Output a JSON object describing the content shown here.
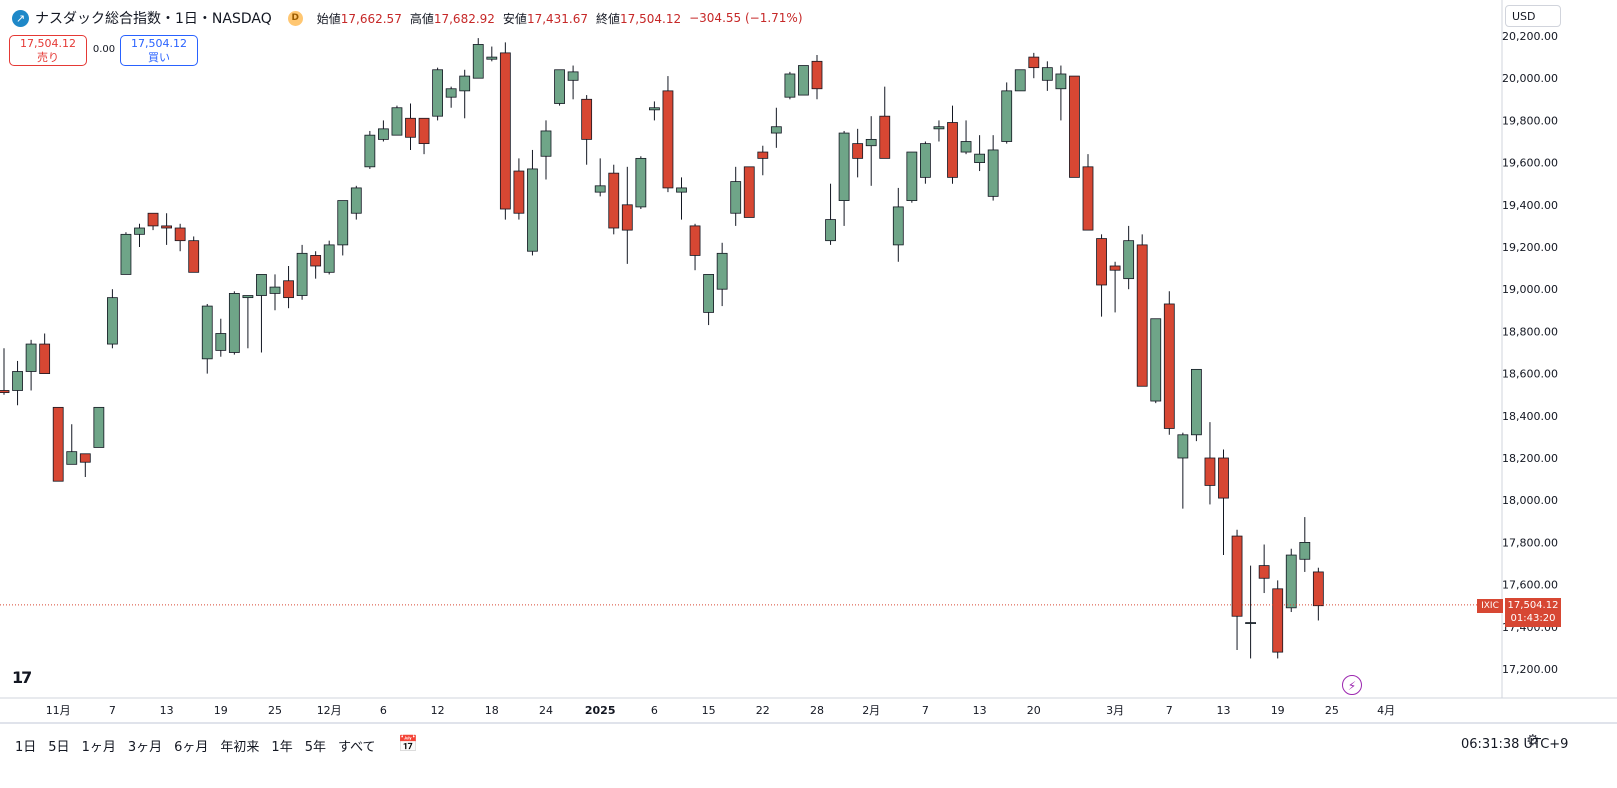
{
  "header": {
    "symbol": "ナスダック総合指数・1日・NASDAQ",
    "symbol_logo_icon": "trend-icon",
    "data_badge": "D",
    "open_label": "始値",
    "open": "17,662.57",
    "high_label": "高値",
    "high": "17,682.92",
    "low_label": "安値",
    "low": "17,431.67",
    "close_label": "終値",
    "close": "17,504.12",
    "change": "−304.55 (−1.71%)"
  },
  "trade": {
    "sell_price": "17,504.12",
    "sell_label": "売り",
    "spread": "0.00",
    "buy_price": "17,504.12",
    "buy_label": "買い"
  },
  "currency": "USD",
  "price_tag": {
    "symbol": "IXIC",
    "price": "17,504.12",
    "countdown": "01:43:20"
  },
  "ranges": [
    "1日",
    "5日",
    "1ヶ月",
    "3ヶ月",
    "6ヶ月",
    "年初来",
    "1年",
    "5年",
    "すべて"
  ],
  "clock": "06:31:38 UTC+9",
  "logo_text": "17",
  "colors": {
    "up": "#6fa588",
    "down": "#d74733",
    "border": "#131722",
    "last": "#d74733"
  },
  "chart_data": {
    "type": "candlestick",
    "y_ticks": [
      "17,200.00",
      "17,400.00",
      "17,600.00",
      "17,800.00",
      "18,000.00",
      "18,200.00",
      "18,400.00",
      "18,600.00",
      "18,800.00",
      "19,000.00",
      "19,200.00",
      "19,400.00",
      "19,600.00",
      "19,800.00",
      "20,000.00",
      "20,200.00"
    ],
    "y_tick_values": [
      17200,
      17400,
      17600,
      17800,
      18000,
      18200,
      18400,
      18600,
      18800,
      19000,
      19200,
      19400,
      19600,
      19800,
      20000,
      20200
    ],
    "ylim": [
      17000,
      20250
    ],
    "x_labels": [
      {
        "label": "11月",
        "i": 4
      },
      {
        "label": "7",
        "i": 8
      },
      {
        "label": "13",
        "i": 12
      },
      {
        "label": "19",
        "i": 16
      },
      {
        "label": "25",
        "i": 20
      },
      {
        "label": "12月",
        "i": 24
      },
      {
        "label": "6",
        "i": 28
      },
      {
        "label": "12",
        "i": 32
      },
      {
        "label": "18",
        "i": 36
      },
      {
        "label": "24",
        "i": 40
      },
      {
        "label": "2025",
        "i": 44
      },
      {
        "label": "6",
        "i": 48
      },
      {
        "label": "15",
        "i": 52
      },
      {
        "label": "22",
        "i": 56
      },
      {
        "label": "28",
        "i": 60
      },
      {
        "label": "2月",
        "i": 64
      },
      {
        "label": "7",
        "i": 68
      },
      {
        "label": "13",
        "i": 72
      },
      {
        "label": "20",
        "i": 76
      },
      {
        "label": "3月",
        "i": 82
      },
      {
        "label": "7",
        "i": 86
      },
      {
        "label": "13",
        "i": 90
      },
      {
        "label": "19",
        "i": 94
      },
      {
        "label": "25",
        "i": 98
      },
      {
        "label": "4月",
        "i": 102
      }
    ],
    "last_price": 17504.12,
    "candles": [
      [
        18520,
        18720,
        18500,
        18510
      ],
      [
        18520,
        18660,
        18450,
        18610
      ],
      [
        18610,
        18760,
        18520,
        18740
      ],
      [
        18740,
        18790,
        18600,
        18600
      ],
      [
        18440,
        18440,
        18090,
        18090
      ],
      [
        18170,
        18360,
        18170,
        18230
      ],
      [
        18220,
        18220,
        18110,
        18180
      ],
      [
        18250,
        18440,
        18250,
        18440
      ],
      [
        18740,
        19000,
        18720,
        18960
      ],
      [
        19070,
        19270,
        19070,
        19260
      ],
      [
        19260,
        19310,
        19200,
        19290
      ],
      [
        19360,
        19360,
        19280,
        19300
      ],
      [
        19300,
        19360,
        19210,
        19290
      ],
      [
        19290,
        19310,
        19180,
        19230
      ],
      [
        19230,
        19250,
        19080,
        19080
      ],
      [
        18670,
        18930,
        18600,
        18920
      ],
      [
        18710,
        18860,
        18680,
        18790
      ],
      [
        18700,
        18990,
        18690,
        18980
      ],
      [
        18960,
        18970,
        18720,
        18970
      ],
      [
        18970,
        19050,
        18700,
        19070
      ],
      [
        18980,
        19070,
        18900,
        19010
      ],
      [
        19040,
        19110,
        18910,
        18960
      ],
      [
        18970,
        19210,
        18950,
        19170
      ],
      [
        19160,
        19180,
        19050,
        19110
      ],
      [
        19080,
        19230,
        19070,
        19210
      ],
      [
        19210,
        19420,
        19160,
        19420
      ],
      [
        19360,
        19490,
        19330,
        19480
      ],
      [
        19580,
        19750,
        19570,
        19730
      ],
      [
        19710,
        19800,
        19700,
        19760
      ],
      [
        19730,
        19870,
        19730,
        19860
      ],
      [
        19810,
        19880,
        19660,
        19720
      ],
      [
        19810,
        19800,
        19640,
        19690
      ],
      [
        19820,
        20050,
        19800,
        20040
      ],
      [
        19910,
        19960,
        19860,
        19950
      ],
      [
        19940,
        20040,
        19810,
        20010
      ],
      [
        20000,
        20190,
        20000,
        20160
      ],
      [
        20090,
        20150,
        20080,
        20100
      ],
      [
        20120,
        20170,
        19330,
        19380
      ],
      [
        19560,
        19620,
        19330,
        19360
      ],
      [
        19180,
        19660,
        19160,
        19570
      ],
      [
        19630,
        19800,
        19520,
        19750
      ],
      [
        19880,
        20020,
        19870,
        20040
      ],
      [
        19990,
        20060,
        19900,
        20030
      ],
      [
        19900,
        19920,
        19590,
        19710
      ],
      [
        19460,
        19620,
        19440,
        19490
      ],
      [
        19550,
        19590,
        19260,
        19290
      ],
      [
        19400,
        19580,
        19120,
        19280
      ],
      [
        19390,
        19630,
        19380,
        19620
      ],
      [
        19850,
        19890,
        19800,
        19860
      ],
      [
        19940,
        20010,
        19460,
        19480
      ],
      [
        19460,
        19530,
        19330,
        19480
      ],
      [
        19300,
        19310,
        19090,
        19160
      ],
      [
        18890,
        19050,
        18830,
        19070
      ],
      [
        19000,
        19220,
        18920,
        19170
      ],
      [
        19360,
        19580,
        19300,
        19510
      ],
      [
        19580,
        19580,
        19340,
        19340
      ],
      [
        19650,
        19680,
        19540,
        19620
      ],
      [
        19740,
        19860,
        19670,
        19770
      ],
      [
        19910,
        20030,
        19900,
        20020
      ],
      [
        19920,
        20060,
        19920,
        20060
      ],
      [
        20080,
        20110,
        19900,
        19950
      ],
      [
        19230,
        19500,
        19210,
        19330
      ],
      [
        19420,
        19750,
        19300,
        19740
      ],
      [
        19690,
        19760,
        19530,
        19620
      ],
      [
        19680,
        19820,
        19490,
        19710
      ],
      [
        19820,
        19960,
        19630,
        19620
      ],
      [
        19210,
        19480,
        19130,
        19390
      ],
      [
        19420,
        19650,
        19410,
        19650
      ],
      [
        19530,
        19700,
        19500,
        19690
      ],
      [
        19760,
        19800,
        19700,
        19770
      ],
      [
        19790,
        19870,
        19500,
        19530
      ],
      [
        19650,
        19800,
        19640,
        19700
      ],
      [
        19600,
        19730,
        19560,
        19640
      ],
      [
        19440,
        19730,
        19420,
        19660
      ],
      [
        19700,
        19980,
        19690,
        19940
      ],
      [
        19940,
        20040,
        19940,
        20040
      ],
      [
        20100,
        20120,
        20000,
        20050
      ],
      [
        19990,
        20080,
        19940,
        20050
      ],
      [
        19950,
        20060,
        19800,
        20020
      ],
      [
        20010,
        20010,
        19530,
        19530
      ],
      [
        19580,
        19640,
        19280,
        19280
      ],
      [
        19240,
        19260,
        18870,
        19020
      ],
      [
        19110,
        19130,
        18890,
        19090
      ],
      [
        19050,
        19300,
        19000,
        19230
      ],
      [
        19210,
        19260,
        18540,
        18540
      ],
      [
        18470,
        18850,
        18460,
        18860
      ],
      [
        18930,
        18990,
        18310,
        18340
      ],
      [
        18200,
        18320,
        17960,
        18310
      ],
      [
        18310,
        18610,
        18280,
        18620
      ],
      [
        18200,
        18370,
        17980,
        18070
      ],
      [
        18200,
        18240,
        17740,
        18010
      ],
      [
        17830,
        17860,
        17290,
        17450
      ],
      [
        17420,
        17690,
        17250,
        17420
      ],
      [
        17690,
        17790,
        17560,
        17630
      ],
      [
        17580,
        17620,
        17250,
        17280
      ],
      [
        17490,
        17770,
        17470,
        17740
      ],
      [
        17720,
        17920,
        17660,
        17800
      ],
      [
        17660,
        17680,
        17430,
        17500
      ]
    ]
  }
}
